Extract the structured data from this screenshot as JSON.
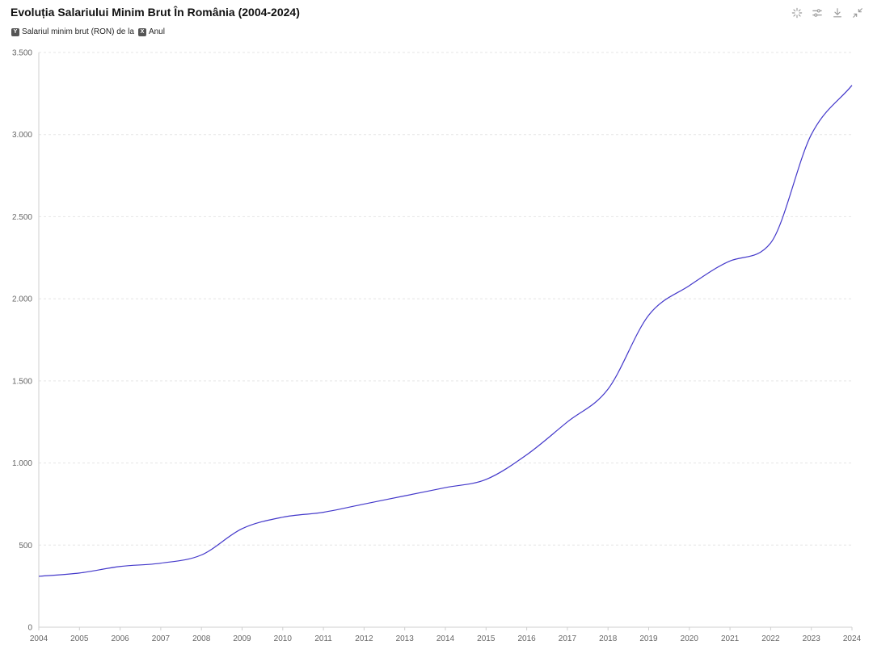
{
  "header": {
    "title": "Evoluția Salariului Minim Brut În România (2004-2024)",
    "tools": [
      {
        "name": "sparkle-icon"
      },
      {
        "name": "sliders-icon"
      },
      {
        "name": "download-icon"
      },
      {
        "name": "collapse-icon"
      }
    ]
  },
  "legend": {
    "y_badge": "Y",
    "y_label": "Salariul minim brut (RON) de la",
    "x_badge": "X",
    "x_label": "Anul"
  },
  "colors": {
    "line": "#4338ca",
    "grid": "#e5e5e5",
    "axis": "#cfcfcf"
  },
  "chart_data": {
    "type": "line",
    "x": [
      "2004",
      "2005",
      "2006",
      "2007",
      "2008",
      "2009",
      "2010",
      "2011",
      "2012",
      "2013",
      "2014",
      "2015",
      "2016",
      "2017",
      "2018",
      "2019",
      "2020",
      "2021",
      "2022",
      "2023",
      "2024"
    ],
    "series": [
      {
        "values": [
          310,
          330,
          370,
          390,
          440,
          600,
          670,
          700,
          750,
          800,
          850,
          900,
          1050,
          1250,
          1450,
          1900,
          2080,
          2230,
          2340,
          3000,
          3300
        ]
      }
    ],
    "ylim": [
      0,
      3500
    ],
    "yticks": [
      0,
      500,
      1000,
      1500,
      2000,
      2500,
      3000,
      3500
    ],
    "ytick_labels": [
      "0",
      "500",
      "1.000",
      "1.500",
      "2.000",
      "2.500",
      "3.000",
      "3.500"
    ],
    "grid": true
  }
}
